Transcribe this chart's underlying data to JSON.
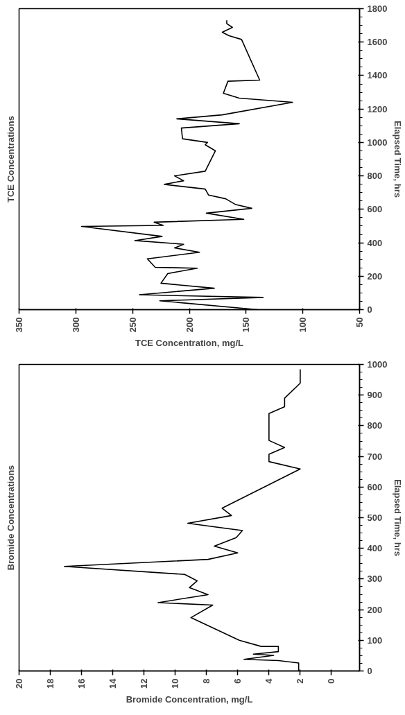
{
  "chart_data": [
    {
      "type": "line",
      "title": "TCE Concentrations",
      "xlabel": "TCE Concentration, mg/L",
      "ylabel": "Elapsed Time, hrs",
      "color": "#000000",
      "x": [
        140,
        226,
        135,
        244,
        178,
        225,
        219,
        193,
        230,
        237,
        191,
        213,
        205,
        248,
        224,
        295,
        223,
        231,
        152,
        185,
        145,
        159,
        168,
        183,
        186,
        222,
        205,
        213,
        186,
        177,
        186,
        184,
        206,
        207,
        156,
        211,
        171,
        109,
        156,
        170,
        166,
        138,
        154,
        165,
        171,
        162,
        167,
        167
      ],
      "values": [
        0,
        53,
        73,
        89,
        128,
        158,
        216,
        248,
        253,
        304,
        343,
        369,
        391,
        413,
        438,
        498,
        504,
        523,
        540,
        577,
        606,
        628,
        663,
        685,
        721,
        749,
        771,
        800,
        828,
        950,
        986,
        1000,
        1022,
        1086,
        1112,
        1141,
        1165,
        1240,
        1265,
        1294,
        1366,
        1373,
        1616,
        1638,
        1659,
        1688,
        1710,
        1731
      ],
      "xlim": [
        350,
        50
      ],
      "xticks": [
        350,
        300,
        250,
        200,
        150,
        100,
        50
      ],
      "ylim": [
        0,
        1800
      ],
      "yticks": [
        0,
        200,
        400,
        600,
        800,
        1000,
        1200,
        1400,
        1600,
        1800
      ]
    },
    {
      "type": "line",
      "title": "Bromide Concentrations",
      "xlabel": "Bromide Concentration, mg/L",
      "ylabel": "Elapsed Time, hrs",
      "color": "#000000",
      "x": [
        2.1,
        2.1,
        3.4,
        5.6,
        3.7,
        5.0,
        3.4,
        3.4,
        4.5,
        5.9,
        9.0,
        7.6,
        11.1,
        7.9,
        9.1,
        8.6,
        9.4,
        17.1,
        7.9,
        6.0,
        7.5,
        6.1,
        5.7,
        9.2,
        6.4,
        7.0,
        2.0,
        4.0,
        4.0,
        3.0,
        4.0,
        4.0,
        3.0,
        3.0,
        2.0,
        2.0
      ],
      "values": [
        0,
        26,
        34,
        38,
        51,
        55,
        63,
        80,
        80,
        100,
        174,
        215,
        223,
        249,
        272,
        294,
        315,
        341,
        364,
        385,
        407,
        435,
        458,
        482,
        507,
        531,
        659,
        683,
        707,
        729,
        752,
        840,
        862,
        890,
        939,
        984
      ],
      "xlim": [
        20,
        -1.8
      ],
      "xticks": [
        20,
        18,
        16,
        14,
        12,
        10,
        8,
        6,
        4,
        2,
        0
      ],
      "ylim": [
        0,
        1000
      ],
      "yticks": [
        0,
        100,
        200,
        300,
        400,
        500,
        600,
        700,
        800,
        900,
        1000
      ]
    }
  ]
}
